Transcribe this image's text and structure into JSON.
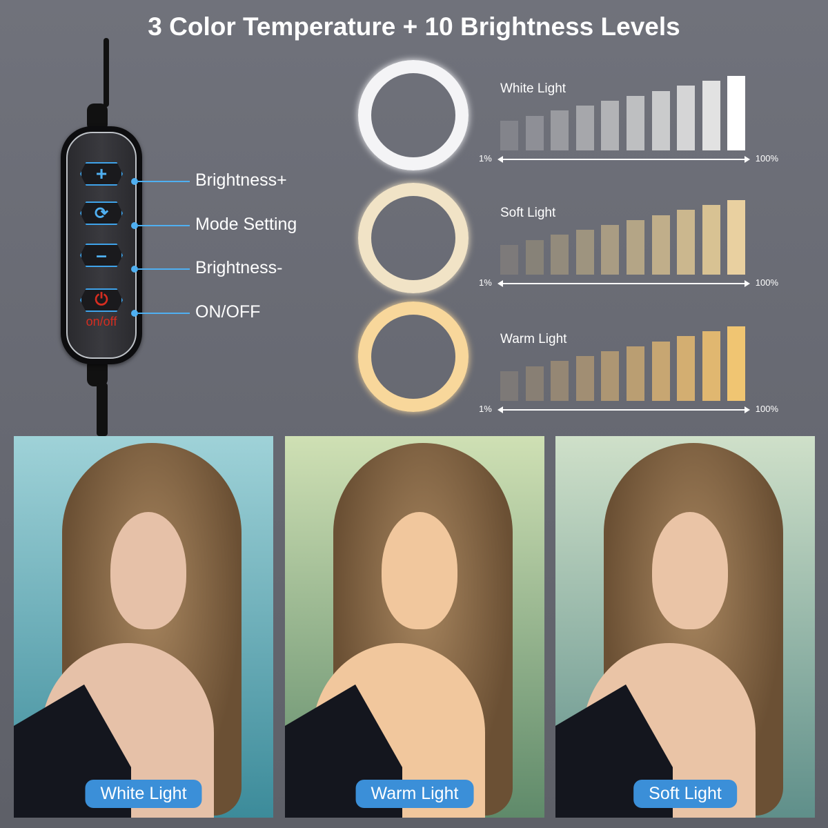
{
  "title": "3 Color Temperature + 10 Brightness Levels",
  "remote": {
    "onoff_text": "on/off",
    "buttons": [
      {
        "icon": "plus-icon",
        "glyph": "+",
        "label": "Brightness+"
      },
      {
        "icon": "refresh-icon",
        "glyph": "⟳",
        "label": "Mode Setting"
      },
      {
        "icon": "minus-icon",
        "glyph": "–",
        "label": "Brightness-"
      },
      {
        "icon": "power-icon",
        "glyph": "⏻",
        "label": "ON/OFF"
      }
    ],
    "accent": "#4fb0f2",
    "power_color": "#d62d20"
  },
  "modes": [
    {
      "label": "White Light",
      "ring_color": "#f4f4f6",
      "min": "1%",
      "max": "100%",
      "levels": [
        10,
        20,
        30,
        40,
        50,
        60,
        70,
        80,
        90,
        100
      ],
      "bar_colors": [
        "#83848b",
        "#8e8f96",
        "#9a9ba0",
        "#a6a7ab",
        "#b2b3b6",
        "#bebfc1",
        "#cacbcc",
        "#d5d5d6",
        "#e2e2e2",
        "#ffffff"
      ]
    },
    {
      "label": "Soft Light",
      "ring_color": "#f1e3c6",
      "min": "1%",
      "max": "100%",
      "levels": [
        10,
        20,
        30,
        40,
        50,
        60,
        70,
        80,
        90,
        100
      ],
      "bar_colors": [
        "#7d7a7a",
        "#878278",
        "#938b7c",
        "#9e947f",
        "#a99c83",
        "#b4a586",
        "#c0ae8a",
        "#cbb78e",
        "#d8c293",
        "#e9d0a0"
      ]
    },
    {
      "label": "Warm Light",
      "ring_color": "#f8d79b",
      "min": "1%",
      "max": "100%",
      "levels": [
        10,
        20,
        30,
        40,
        50,
        60,
        70,
        80,
        90,
        100
      ],
      "bar_colors": [
        "#7d7977",
        "#887f74",
        "#958774",
        "#a18e73",
        "#ad9673",
        "#ba9e72",
        "#c7a672",
        "#d3ae71",
        "#e0b770",
        "#f0c572"
      ]
    }
  ],
  "photos": [
    {
      "label": "White Light",
      "bg": [
        "#9fd2d8",
        "#3c8b9a"
      ],
      "tone": "#e6c1a8"
    },
    {
      "label": "Warm Light",
      "bg": [
        "#cfe0b4",
        "#5f8a6a"
      ],
      "tone": "#f1c79d"
    },
    {
      "label": "Soft Light",
      "bg": [
        "#cfe0c9",
        "#5f8f8a"
      ],
      "tone": "#eac4a6"
    }
  ]
}
